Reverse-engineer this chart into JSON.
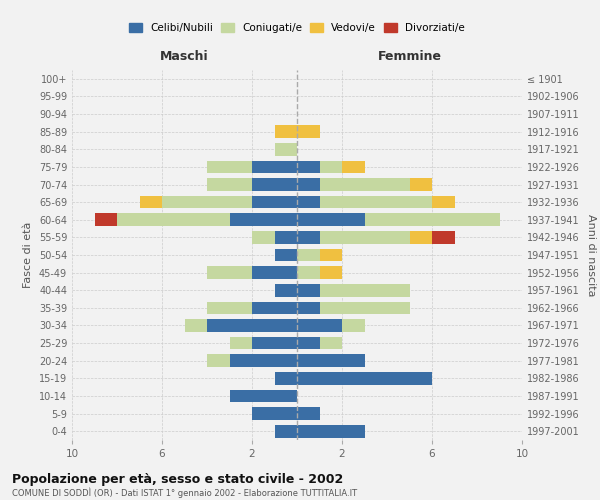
{
  "age_groups": [
    "0-4",
    "5-9",
    "10-14",
    "15-19",
    "20-24",
    "25-29",
    "30-34",
    "35-39",
    "40-44",
    "45-49",
    "50-54",
    "55-59",
    "60-64",
    "65-69",
    "70-74",
    "75-79",
    "80-84",
    "85-89",
    "90-94",
    "95-99",
    "100+"
  ],
  "birth_years": [
    "1997-2001",
    "1992-1996",
    "1987-1991",
    "1982-1986",
    "1977-1981",
    "1972-1976",
    "1967-1971",
    "1962-1966",
    "1957-1961",
    "1952-1956",
    "1947-1951",
    "1942-1946",
    "1937-1941",
    "1932-1936",
    "1927-1931",
    "1922-1926",
    "1917-1921",
    "1912-1916",
    "1907-1911",
    "1902-1906",
    "≤ 1901"
  ],
  "male": {
    "celibi": [
      1,
      2,
      3,
      1,
      3,
      2,
      4,
      2,
      1,
      2,
      1,
      1,
      3,
      2,
      2,
      2,
      0,
      0,
      0,
      0,
      0
    ],
    "coniugati": [
      0,
      0,
      0,
      0,
      1,
      1,
      1,
      2,
      0,
      2,
      0,
      1,
      5,
      4,
      2,
      2,
      1,
      0,
      0,
      0,
      0
    ],
    "vedovi": [
      0,
      0,
      0,
      0,
      0,
      0,
      0,
      0,
      0,
      0,
      0,
      0,
      0,
      1,
      0,
      0,
      0,
      1,
      0,
      0,
      0
    ],
    "divorziati": [
      0,
      0,
      0,
      0,
      0,
      0,
      0,
      0,
      0,
      0,
      0,
      0,
      1,
      0,
      0,
      0,
      0,
      0,
      0,
      0,
      0
    ]
  },
  "female": {
    "nubili": [
      3,
      1,
      0,
      6,
      3,
      1,
      2,
      1,
      1,
      0,
      0,
      1,
      3,
      1,
      1,
      1,
      0,
      0,
      0,
      0,
      0
    ],
    "coniugate": [
      0,
      0,
      0,
      0,
      0,
      1,
      1,
      4,
      4,
      1,
      1,
      4,
      6,
      5,
      4,
      1,
      0,
      0,
      0,
      0,
      0
    ],
    "vedove": [
      0,
      0,
      0,
      0,
      0,
      0,
      0,
      0,
      0,
      1,
      1,
      1,
      0,
      1,
      1,
      1,
      0,
      1,
      0,
      0,
      0
    ],
    "divorziate": [
      0,
      0,
      0,
      0,
      0,
      0,
      0,
      0,
      0,
      0,
      0,
      1,
      0,
      0,
      0,
      0,
      0,
      0,
      0,
      0,
      0
    ]
  },
  "colors": {
    "celibi": "#3a6ea5",
    "coniugati": "#c5d8a0",
    "vedovi": "#f0c040",
    "divorziati": "#c0392b"
  },
  "title": "Popolazione per età, sesso e stato civile - 2002",
  "subtitle": "COMUNE DI SODDÌ (OR) - Dati ISTAT 1° gennaio 2002 - Elaborazione TUTTITALIA.IT",
  "xlabel_left": "Maschi",
  "xlabel_right": "Femmine",
  "ylabel_left": "Fasce di età",
  "ylabel_right": "Anni di nascita",
  "xlim": 10,
  "background_color": "#f2f2f2"
}
